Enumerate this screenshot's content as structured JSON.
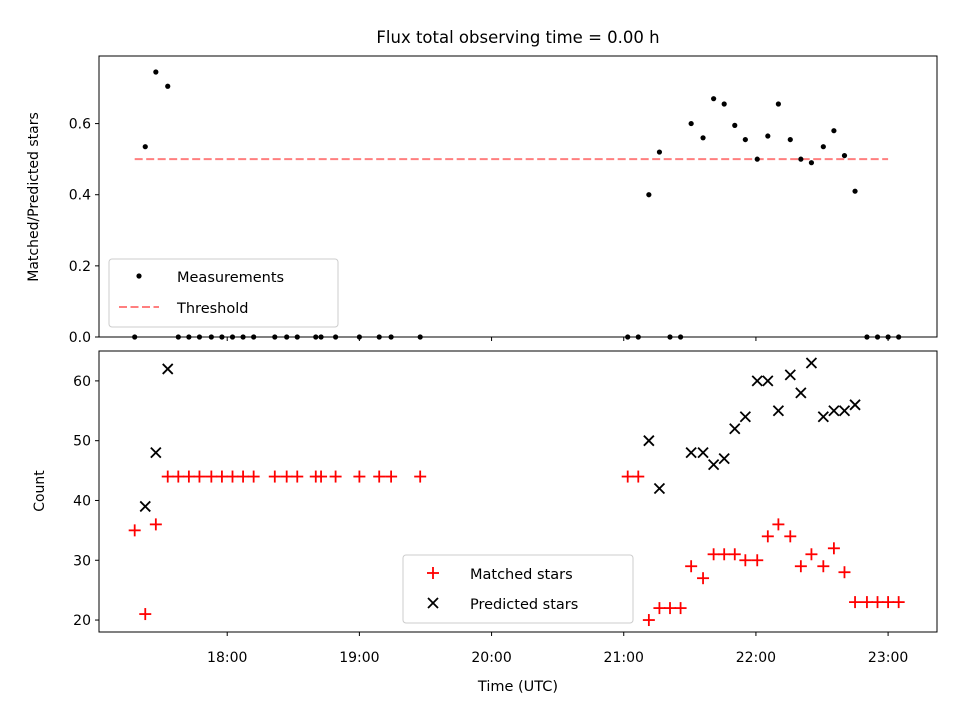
{
  "chart_data": [
    {
      "type": "scatter",
      "title": "Flux total observing time = 0.00 h",
      "ylabel": "Matched/Predicted stars",
      "xlabel": "",
      "ylim": [
        0,
        0.79
      ],
      "yticks": [
        "0.0",
        "0.2",
        "0.4",
        "0.6"
      ],
      "x_range_hours": [
        17.03,
        23.37
      ],
      "threshold": {
        "name": "Threshold",
        "value": 0.5,
        "x": [
          17.3,
          23.0
        ],
        "color": "#ff7f7f"
      },
      "legend_position": "lower-left",
      "series": [
        {
          "name": "Measurements",
          "marker": "dot",
          "color": "#000000",
          "points": [
            {
              "x": 17.3,
              "y": 0.0
            },
            {
              "x": 17.38,
              "y": 0.535
            },
            {
              "x": 17.46,
              "y": 0.745
            },
            {
              "x": 17.55,
              "y": 0.705
            },
            {
              "x": 17.63,
              "y": 0.0
            },
            {
              "x": 17.71,
              "y": 0.0
            },
            {
              "x": 17.79,
              "y": 0.0
            },
            {
              "x": 17.88,
              "y": 0.0
            },
            {
              "x": 17.96,
              "y": 0.0
            },
            {
              "x": 18.04,
              "y": 0.0
            },
            {
              "x": 18.12,
              "y": 0.0
            },
            {
              "x": 18.2,
              "y": 0.0
            },
            {
              "x": 18.36,
              "y": 0.0
            },
            {
              "x": 18.45,
              "y": 0.0
            },
            {
              "x": 18.53,
              "y": 0.0
            },
            {
              "x": 18.67,
              "y": 0.0
            },
            {
              "x": 18.71,
              "y": 0.0
            },
            {
              "x": 18.82,
              "y": 0.0
            },
            {
              "x": 19.0,
              "y": 0.0
            },
            {
              "x": 19.15,
              "y": 0.0
            },
            {
              "x": 19.24,
              "y": 0.0
            },
            {
              "x": 19.46,
              "y": 0.0
            },
            {
              "x": 21.03,
              "y": 0.0
            },
            {
              "x": 21.11,
              "y": 0.0
            },
            {
              "x": 21.19,
              "y": 0.4
            },
            {
              "x": 21.27,
              "y": 0.52
            },
            {
              "x": 21.35,
              "y": 0.0
            },
            {
              "x": 21.43,
              "y": 0.0
            },
            {
              "x": 21.51,
              "y": 0.6
            },
            {
              "x": 21.6,
              "y": 0.56
            },
            {
              "x": 21.68,
              "y": 0.67
            },
            {
              "x": 21.76,
              "y": 0.655
            },
            {
              "x": 21.84,
              "y": 0.595
            },
            {
              "x": 21.92,
              "y": 0.555
            },
            {
              "x": 22.01,
              "y": 0.5
            },
            {
              "x": 22.09,
              "y": 0.565
            },
            {
              "x": 22.17,
              "y": 0.655
            },
            {
              "x": 22.26,
              "y": 0.555
            },
            {
              "x": 22.34,
              "y": 0.5
            },
            {
              "x": 22.42,
              "y": 0.49
            },
            {
              "x": 22.51,
              "y": 0.535
            },
            {
              "x": 22.59,
              "y": 0.58
            },
            {
              "x": 22.67,
              "y": 0.51
            },
            {
              "x": 22.75,
              "y": 0.41
            },
            {
              "x": 22.84,
              "y": 0.0
            },
            {
              "x": 22.92,
              "y": 0.0
            },
            {
              "x": 23.0,
              "y": 0.0
            },
            {
              "x": 23.08,
              "y": 0.0
            }
          ]
        }
      ]
    },
    {
      "type": "scatter",
      "title": "",
      "ylabel": "Count",
      "xlabel": "Time (UTC)",
      "ylim": [
        18,
        65
      ],
      "yticks": [
        "20",
        "30",
        "40",
        "50",
        "60"
      ],
      "xticks": [
        "18:00",
        "19:00",
        "20:00",
        "21:00",
        "22:00",
        "23:00"
      ],
      "x_range_hours": [
        17.03,
        23.37
      ],
      "legend_position": "lower-center",
      "series": [
        {
          "name": "Matched stars",
          "marker": "plus",
          "color": "#ff0000",
          "points": [
            {
              "x": 17.3,
              "y": 35
            },
            {
              "x": 17.38,
              "y": 21
            },
            {
              "x": 17.46,
              "y": 36
            },
            {
              "x": 17.55,
              "y": 44
            },
            {
              "x": 17.63,
              "y": 44
            },
            {
              "x": 17.71,
              "y": 44
            },
            {
              "x": 17.79,
              "y": 44
            },
            {
              "x": 17.88,
              "y": 44
            },
            {
              "x": 17.96,
              "y": 44
            },
            {
              "x": 18.04,
              "y": 44
            },
            {
              "x": 18.12,
              "y": 44
            },
            {
              "x": 18.2,
              "y": 44
            },
            {
              "x": 18.36,
              "y": 44
            },
            {
              "x": 18.45,
              "y": 44
            },
            {
              "x": 18.53,
              "y": 44
            },
            {
              "x": 18.67,
              "y": 44
            },
            {
              "x": 18.71,
              "y": 44
            },
            {
              "x": 18.82,
              "y": 44
            },
            {
              "x": 19.0,
              "y": 44
            },
            {
              "x": 19.15,
              "y": 44
            },
            {
              "x": 19.24,
              "y": 44
            },
            {
              "x": 19.46,
              "y": 44
            },
            {
              "x": 21.03,
              "y": 44
            },
            {
              "x": 21.11,
              "y": 44
            },
            {
              "x": 21.19,
              "y": 20
            },
            {
              "x": 21.27,
              "y": 22
            },
            {
              "x": 21.35,
              "y": 22
            },
            {
              "x": 21.43,
              "y": 22
            },
            {
              "x": 21.51,
              "y": 29
            },
            {
              "x": 21.6,
              "y": 27
            },
            {
              "x": 21.68,
              "y": 31
            },
            {
              "x": 21.76,
              "y": 31
            },
            {
              "x": 21.84,
              "y": 31
            },
            {
              "x": 21.92,
              "y": 30
            },
            {
              "x": 22.01,
              "y": 30
            },
            {
              "x": 22.09,
              "y": 34
            },
            {
              "x": 22.17,
              "y": 36
            },
            {
              "x": 22.26,
              "y": 34
            },
            {
              "x": 22.34,
              "y": 29
            },
            {
              "x": 22.42,
              "y": 31
            },
            {
              "x": 22.51,
              "y": 29
            },
            {
              "x": 22.59,
              "y": 32
            },
            {
              "x": 22.67,
              "y": 28
            },
            {
              "x": 22.75,
              "y": 23
            },
            {
              "x": 22.84,
              "y": 23
            },
            {
              "x": 22.92,
              "y": 23
            },
            {
              "x": 23.0,
              "y": 23
            },
            {
              "x": 23.08,
              "y": 23
            }
          ]
        },
        {
          "name": "Predicted stars",
          "marker": "x",
          "color": "#000000",
          "points": [
            {
              "x": 17.38,
              "y": 39
            },
            {
              "x": 17.46,
              "y": 48
            },
            {
              "x": 17.55,
              "y": 62
            },
            {
              "x": 21.19,
              "y": 50
            },
            {
              "x": 21.27,
              "y": 42
            },
            {
              "x": 21.51,
              "y": 48
            },
            {
              "x": 21.6,
              "y": 48
            },
            {
              "x": 21.68,
              "y": 46
            },
            {
              "x": 21.76,
              "y": 47
            },
            {
              "x": 21.84,
              "y": 52
            },
            {
              "x": 21.92,
              "y": 54
            },
            {
              "x": 22.01,
              "y": 60
            },
            {
              "x": 22.09,
              "y": 60
            },
            {
              "x": 22.17,
              "y": 55
            },
            {
              "x": 22.26,
              "y": 61
            },
            {
              "x": 22.34,
              "y": 58
            },
            {
              "x": 22.42,
              "y": 63
            },
            {
              "x": 22.51,
              "y": 54
            },
            {
              "x": 22.59,
              "y": 55
            },
            {
              "x": 22.67,
              "y": 55
            },
            {
              "x": 22.75,
              "y": 56
            }
          ]
        }
      ]
    }
  ]
}
